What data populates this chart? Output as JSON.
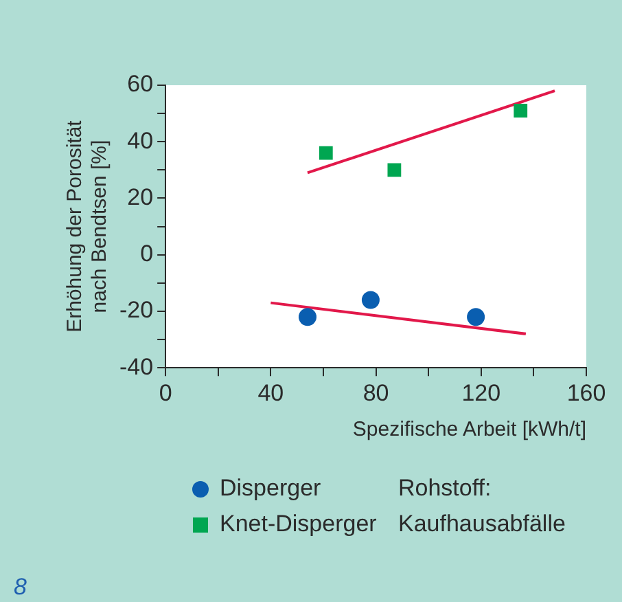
{
  "chart_data": {
    "type": "scatter",
    "xlabel": "Spezifische Arbeit [kWh/t]",
    "ylabel": "Erhöhung der Porosität\nnach Bendtsen [%]",
    "series": [
      {
        "name": "Disperger",
        "color": "#0a5eb0",
        "marker": "circle",
        "x": [
          54,
          78,
          118
        ],
        "values": [
          -22,
          -16,
          -22
        ]
      },
      {
        "name": "Knet-Disperger",
        "color": "#00a651",
        "marker": "square",
        "x": [
          61,
          87,
          135
        ],
        "values": [
          36,
          30,
          51
        ]
      },
      {
        "type": "line",
        "color": "#e2184a",
        "x": [
          40,
          137
        ],
        "values": [
          -17,
          -28
        ]
      },
      {
        "type": "line",
        "color": "#e2184a",
        "x": [
          54,
          148
        ],
        "values": [
          29,
          58
        ]
      }
    ],
    "xlim": [
      0,
      160
    ],
    "xticks": [
      0,
      {
        "value": 20,
        "label": null
      },
      40,
      {
        "value": 60,
        "label": null
      },
      80,
      {
        "value": 100,
        "label": null
      },
      120,
      {
        "value": 140,
        "label": null
      },
      160
    ],
    "ylim": [
      -40,
      60
    ],
    "yticks": [
      -40,
      {
        "value": -30,
        "label": null
      },
      -20,
      {
        "value": -10,
        "label": null
      },
      0,
      {
        "value": 10,
        "label": null
      },
      20,
      {
        "value": 30,
        "label": null
      },
      40,
      {
        "value": 50,
        "label": null
      },
      60
    ],
    "grid": false,
    "legend": "bottom",
    "annotations": [
      "Rohstoff:\nKaufhausabfälle",
      "8"
    ]
  }
}
